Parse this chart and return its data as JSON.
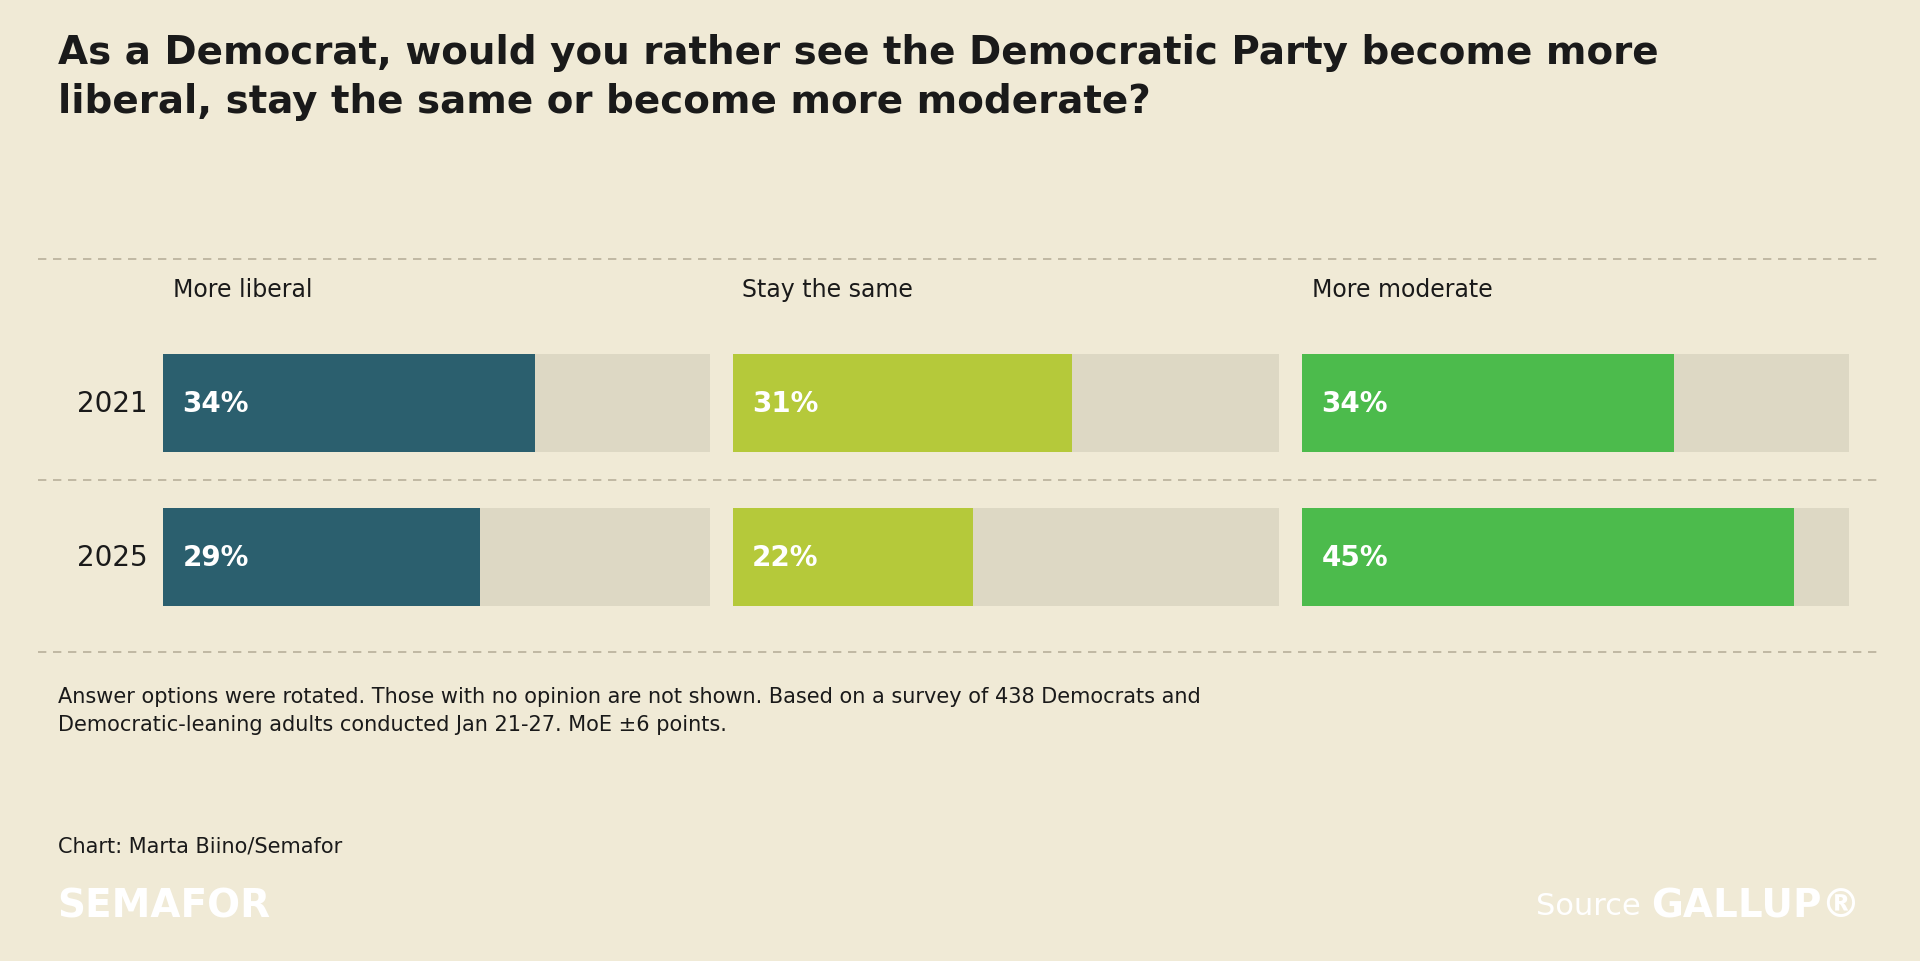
{
  "title": "As a Democrat, would you rather see the Democratic Party become more\nliberal, stay the same or become more moderate?",
  "background_color": "#f0ead6",
  "footer_bg_color": "#3a7d44",
  "categories": [
    "More liberal",
    "Stay the same",
    "More moderate"
  ],
  "years": [
    "2021",
    "2025"
  ],
  "values": {
    "2021": [
      34,
      31,
      34
    ],
    "2025": [
      29,
      22,
      45
    ]
  },
  "bar_colors": {
    "More liberal": "#2b5f6e",
    "Stay the same": "#b5c93a",
    "More moderate": "#4cbb4c"
  },
  "bar_bg_color": "#ddd8c4",
  "max_val": 50,
  "footnote": "Answer options were rotated. Those with no opinion are not shown. Based on a survey of 438 Democrats and\nDemocratic-leaning adults conducted Jan 21-27. MoE ±6 points.",
  "chart_credit": "Chart: Marta Biino/Semafor",
  "semafor_label": "SEMAFOR",
  "source_label": "Source",
  "gallup_label": "GALLUP®",
  "title_fontsize": 28,
  "category_fontsize": 17,
  "year_fontsize": 20,
  "value_fontsize": 20,
  "footnote_fontsize": 15,
  "footer_fontsize": 22,
  "dashed_line_color": "#b8b09a",
  "text_color": "#1a1a1a",
  "footer_text_color": "#ffffff"
}
